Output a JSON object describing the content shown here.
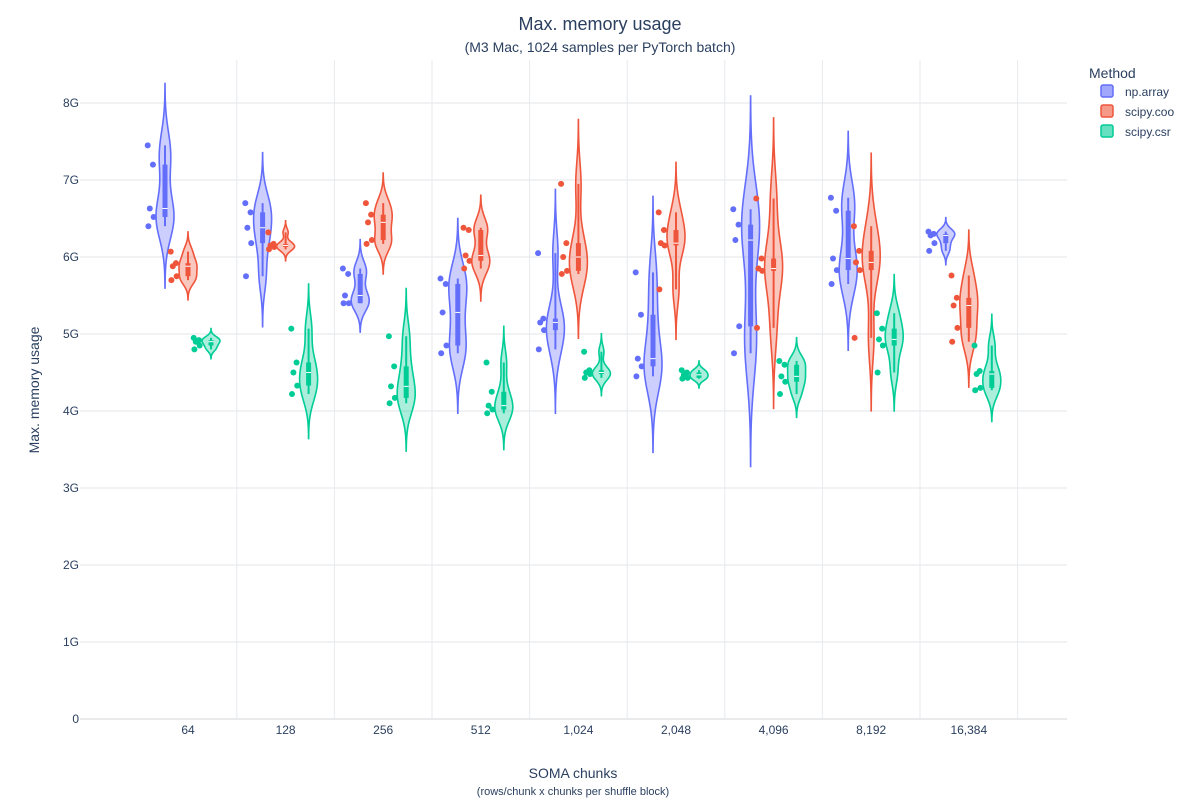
{
  "chart_data": {
    "type": "violin",
    "title": "Max. memory usage",
    "subtitle": "(M3 Mac, 1024 samples per PyTorch batch)",
    "xlabel": "SOMA chunks",
    "xlabel_sub": "(rows/chunk x chunks per shuffle block)",
    "ylabel": "Max. memory usage",
    "ylim": [
      0,
      8.6
    ],
    "yticks": [
      {
        "value": 0,
        "label": "0"
      },
      {
        "value": 1,
        "label": "1G"
      },
      {
        "value": 2,
        "label": "2G"
      },
      {
        "value": 3,
        "label": "3G"
      },
      {
        "value": 4,
        "label": "4G"
      },
      {
        "value": 5,
        "label": "5G"
      },
      {
        "value": 6,
        "label": "6G"
      },
      {
        "value": 7,
        "label": "7G"
      },
      {
        "value": 8,
        "label": "8G"
      }
    ],
    "categories": [
      "64",
      "128",
      "256",
      "512",
      "1,024",
      "2,048",
      "4,096",
      "8,192",
      "16,384"
    ],
    "grid": true,
    "legend": {
      "title": "Method",
      "placement": "top-right"
    },
    "series": [
      {
        "name": "np.array",
        "color": "#636efa",
        "points": [
          [
            7.45,
            7.2,
            6.63,
            6.52,
            6.4
          ],
          [
            6.7,
            6.58,
            6.38,
            6.18,
            5.75
          ],
          [
            5.85,
            5.78,
            5.5,
            5.4,
            5.4
          ],
          [
            5.72,
            5.65,
            5.28,
            4.85,
            4.75
          ],
          [
            6.05,
            5.2,
            5.15,
            5.05,
            4.8
          ],
          [
            5.8,
            5.25,
            4.68,
            4.58,
            4.45
          ],
          [
            6.62,
            6.42,
            6.22,
            5.1,
            4.75
          ],
          [
            6.77,
            6.6,
            5.98,
            5.83,
            5.65
          ],
          [
            6.33,
            6.3,
            6.28,
            6.18,
            6.08
          ]
        ]
      },
      {
        "name": "scipy.coo",
        "color": "#ef553b",
        "points": [
          [
            6.07,
            5.92,
            5.88,
            5.75,
            5.7
          ],
          [
            6.32,
            6.17,
            6.15,
            6.13,
            6.1
          ],
          [
            6.7,
            6.55,
            6.45,
            6.22,
            6.17
          ],
          [
            6.38,
            6.35,
            6.02,
            5.95,
            5.85
          ],
          [
            6.95,
            6.18,
            6.0,
            5.82,
            5.78
          ],
          [
            6.58,
            6.35,
            6.18,
            6.15,
            5.58
          ],
          [
            6.76,
            5.98,
            5.85,
            5.82,
            5.08
          ],
          [
            6.4,
            6.08,
            5.93,
            5.83,
            4.95
          ],
          [
            5.76,
            5.47,
            5.37,
            5.08,
            4.9
          ]
        ]
      },
      {
        "name": "scipy.csr",
        "color": "#00cc96",
        "points": [
          [
            4.95,
            4.92,
            4.9,
            4.85,
            4.8
          ],
          [
            5.07,
            4.63,
            4.5,
            4.33,
            4.22
          ],
          [
            4.97,
            4.58,
            4.32,
            4.17,
            4.1
          ],
          [
            4.63,
            4.25,
            4.07,
            4.02,
            3.97
          ],
          [
            4.77,
            4.53,
            4.5,
            4.48,
            4.43
          ],
          [
            4.53,
            4.5,
            4.47,
            4.43,
            4.42
          ],
          [
            4.65,
            4.6,
            4.45,
            4.38,
            4.22
          ],
          [
            5.27,
            5.07,
            4.93,
            4.85,
            4.5
          ],
          [
            4.85,
            4.52,
            4.48,
            4.3,
            4.27
          ]
        ]
      }
    ]
  }
}
